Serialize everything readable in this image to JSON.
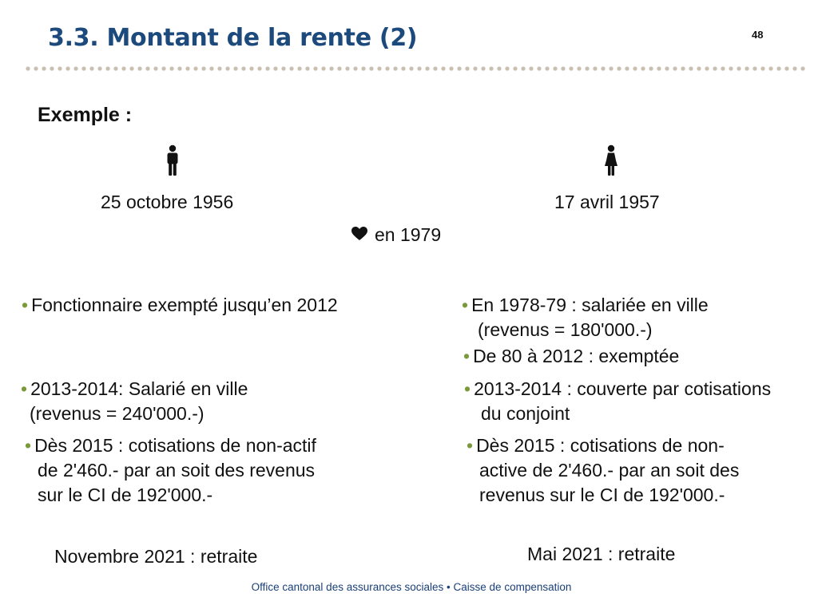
{
  "header": {
    "title": "3.3. Montant de la rente (2)",
    "page_number": "48"
  },
  "example_label": "Exemple :",
  "man": {
    "icon": "man-icon",
    "birth_date": "25 octobre 1956",
    "items": [
      {
        "lines": [
          "Fonctionnaire exempté jusqu’en 2012"
        ]
      },
      {
        "lines": [
          "2013-2014: Salarié en ville",
          "(revenus = 240'000.-)"
        ]
      },
      {
        "lines": [
          "Dès 2015  : cotisations de non-actif",
          "de 2'460.- par an soit des revenus",
          "sur le CI de 192'000.-"
        ]
      }
    ],
    "retirement": "Novembre 2021 : retraite"
  },
  "woman": {
    "icon": "woman-icon",
    "birth_date": "17 avril 1957",
    "items": [
      {
        "lines": [
          "En 1978-79 : salariée en ville",
          "(revenus = 180'000.-)"
        ]
      },
      {
        "lines": [
          "De 80 à 2012 : exemptée"
        ]
      },
      {
        "lines": [
          "2013-2014 : couverte par cotisations",
          "du conjoint"
        ]
      },
      {
        "lines": [
          "Dès 2015  : cotisations de non-",
          "active de 2'460.- par an soit des",
          "revenus sur le CI de 192'000.-"
        ]
      }
    ],
    "retirement": "Mai 2021 : retraite"
  },
  "marriage": {
    "icon": "heart-icon",
    "text": "en 1979"
  },
  "footer": {
    "left": "Office cantonal des assurances sociales",
    "separator": "•",
    "right": "Caisse de compensation"
  },
  "colors": {
    "title": "#1d4a7c",
    "bullet": "#7a9a3a",
    "footer": "#1a3f78",
    "dots": "#c9bfb0"
  }
}
